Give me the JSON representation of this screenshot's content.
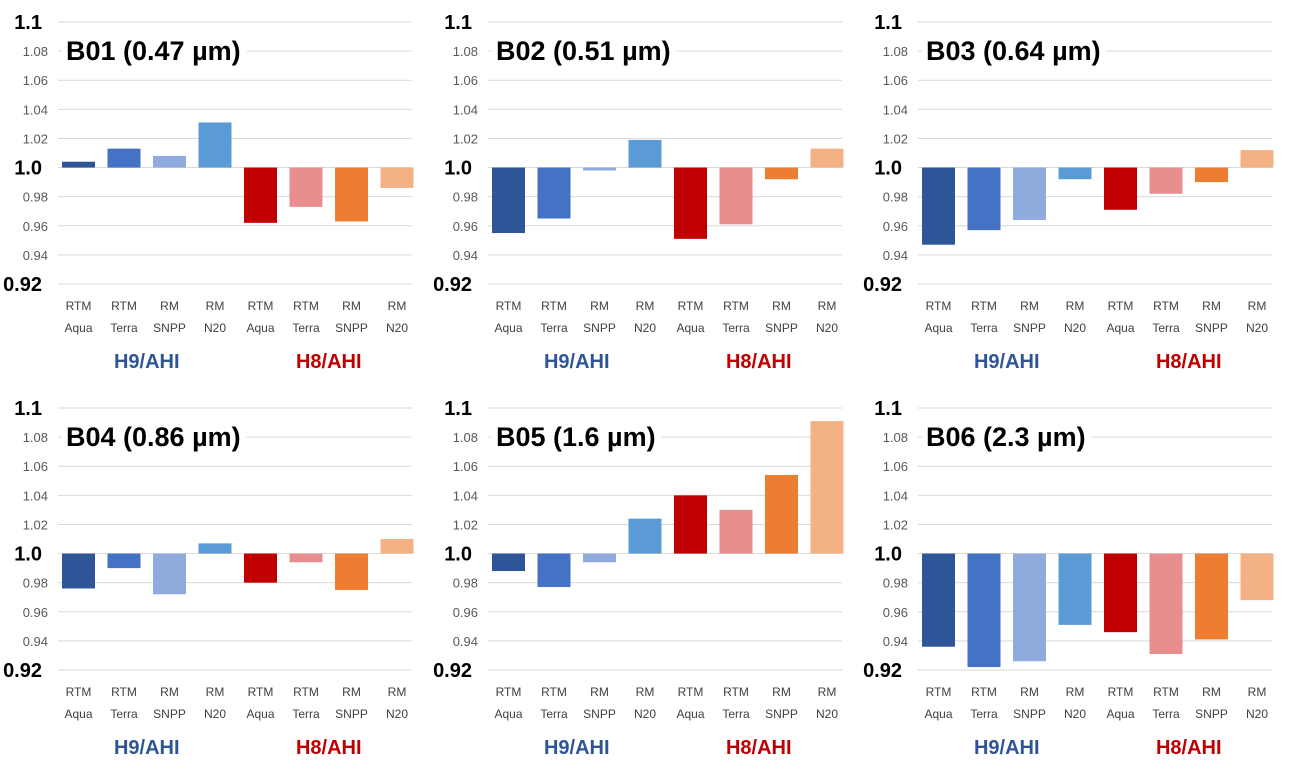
{
  "chart_data": [
    {
      "type": "bar",
      "title": "B01 (0.47 µm)",
      "categories": [
        [
          "RTM",
          "Aqua"
        ],
        [
          "RTM",
          "Terra"
        ],
        [
          "RM",
          "SNPP"
        ],
        [
          "RM",
          "N20"
        ],
        [
          "RTM",
          "Aqua"
        ],
        [
          "RTM",
          "Terra"
        ],
        [
          "RM",
          "SNPP"
        ],
        [
          "RM",
          "N20"
        ]
      ],
      "groups": [
        {
          "label": "H9/AHI",
          "color": "#2E5597"
        },
        {
          "label": "H8/AHI",
          "color": "#C00000"
        }
      ],
      "values": [
        1.004,
        1.013,
        1.008,
        1.031,
        0.962,
        0.973,
        0.963,
        0.986
      ],
      "baseline": 1.0,
      "ylim": [
        0.92,
        1.1
      ],
      "yticks": [
        "0.92",
        "0.94",
        "0.96",
        "0.98",
        "1.0",
        "1.02",
        "1.04",
        "1.06",
        "1.08",
        "1.1"
      ],
      "grid": true
    },
    {
      "type": "bar",
      "title": "B02 (0.51 µm)",
      "categories": [
        [
          "RTM",
          "Aqua"
        ],
        [
          "RTM",
          "Terra"
        ],
        [
          "RM",
          "SNPP"
        ],
        [
          "RM",
          "N20"
        ],
        [
          "RTM",
          "Aqua"
        ],
        [
          "RTM",
          "Terra"
        ],
        [
          "RM",
          "SNPP"
        ],
        [
          "RM",
          "N20"
        ]
      ],
      "groups": [
        {
          "label": "H9/AHI",
          "color": "#2E5597"
        },
        {
          "label": "H8/AHI",
          "color": "#C00000"
        }
      ],
      "values": [
        0.955,
        0.965,
        0.998,
        1.019,
        0.951,
        0.961,
        0.992,
        1.013
      ],
      "baseline": 1.0,
      "ylim": [
        0.92,
        1.1
      ],
      "yticks": [
        "0.92",
        "0.94",
        "0.96",
        "0.98",
        "1.0",
        "1.02",
        "1.04",
        "1.06",
        "1.08",
        "1.1"
      ],
      "grid": true
    },
    {
      "type": "bar",
      "title": "B03 (0.64 µm)",
      "categories": [
        [
          "RTM",
          "Aqua"
        ],
        [
          "RTM",
          "Terra"
        ],
        [
          "RM",
          "SNPP"
        ],
        [
          "RM",
          "N20"
        ],
        [
          "RTM",
          "Aqua"
        ],
        [
          "RTM",
          "Terra"
        ],
        [
          "RM",
          "SNPP"
        ],
        [
          "RM",
          "N20"
        ]
      ],
      "groups": [
        {
          "label": "H9/AHI",
          "color": "#2E5597"
        },
        {
          "label": "H8/AHI",
          "color": "#C00000"
        }
      ],
      "values": [
        0.947,
        0.957,
        0.964,
        0.992,
        0.971,
        0.982,
        0.99,
        1.012
      ],
      "baseline": 1.0,
      "ylim": [
        0.92,
        1.1
      ],
      "yticks": [
        "0.92",
        "0.94",
        "0.96",
        "0.98",
        "1.0",
        "1.02",
        "1.04",
        "1.06",
        "1.08",
        "1.1"
      ],
      "grid": true
    },
    {
      "type": "bar",
      "title": "B04 (0.86 µm)",
      "categories": [
        [
          "RTM",
          "Aqua"
        ],
        [
          "RTM",
          "Terra"
        ],
        [
          "RM",
          "SNPP"
        ],
        [
          "RM",
          "N20"
        ],
        [
          "RTM",
          "Aqua"
        ],
        [
          "RTM",
          "Terra"
        ],
        [
          "RM",
          "SNPP"
        ],
        [
          "RM",
          "N20"
        ]
      ],
      "groups": [
        {
          "label": "H9/AHI",
          "color": "#2E5597"
        },
        {
          "label": "H8/AHI",
          "color": "#C00000"
        }
      ],
      "values": [
        0.976,
        0.99,
        0.972,
        1.007,
        0.98,
        0.994,
        0.975,
        1.01
      ],
      "baseline": 1.0,
      "ylim": [
        0.92,
        1.1
      ],
      "yticks": [
        "0.92",
        "0.94",
        "0.96",
        "0.98",
        "1.0",
        "1.02",
        "1.04",
        "1.06",
        "1.08",
        "1.1"
      ],
      "grid": true
    },
    {
      "type": "bar",
      "title": "B05 (1.6 µm)",
      "categories": [
        [
          "RTM",
          "Aqua"
        ],
        [
          "RTM",
          "Terra"
        ],
        [
          "RM",
          "SNPP"
        ],
        [
          "RM",
          "N20"
        ],
        [
          "RTM",
          "Aqua"
        ],
        [
          "RTM",
          "Terra"
        ],
        [
          "RM",
          "SNPP"
        ],
        [
          "RM",
          "N20"
        ]
      ],
      "groups": [
        {
          "label": "H9/AHI",
          "color": "#2E5597"
        },
        {
          "label": "H8/AHI",
          "color": "#C00000"
        }
      ],
      "values": [
        0.988,
        0.977,
        0.994,
        1.024,
        1.04,
        1.03,
        1.054,
        1.091
      ],
      "baseline": 1.0,
      "ylim": [
        0.92,
        1.1
      ],
      "yticks": [
        "0.92",
        "0.94",
        "0.96",
        "0.98",
        "1.0",
        "1.02",
        "1.04",
        "1.06",
        "1.08",
        "1.1"
      ],
      "grid": true
    },
    {
      "type": "bar",
      "title": "B06 (2.3 µm)",
      "categories": [
        [
          "RTM",
          "Aqua"
        ],
        [
          "RTM",
          "Terra"
        ],
        [
          "RM",
          "SNPP"
        ],
        [
          "RM",
          "N20"
        ],
        [
          "RTM",
          "Aqua"
        ],
        [
          "RTM",
          "Terra"
        ],
        [
          "RM",
          "SNPP"
        ],
        [
          "RM",
          "N20"
        ]
      ],
      "groups": [
        {
          "label": "H9/AHI",
          "color": "#2E5597"
        },
        {
          "label": "H8/AHI",
          "color": "#C00000"
        }
      ],
      "values": [
        0.936,
        0.922,
        0.926,
        0.951,
        0.946,
        0.931,
        0.941,
        0.968
      ],
      "baseline": 1.0,
      "ylim": [
        0.92,
        1.1
      ],
      "yticks": [
        "0.92",
        "0.94",
        "0.96",
        "0.98",
        "1.0",
        "1.02",
        "1.04",
        "1.06",
        "1.08",
        "1.1"
      ],
      "grid": true
    }
  ],
  "bar_colors": [
    "#2E5597",
    "#4472C4",
    "#8FAADC",
    "#5B9BD5",
    "#C00000",
    "#E88E8E",
    "#ED7D31",
    "#F4B183"
  ]
}
